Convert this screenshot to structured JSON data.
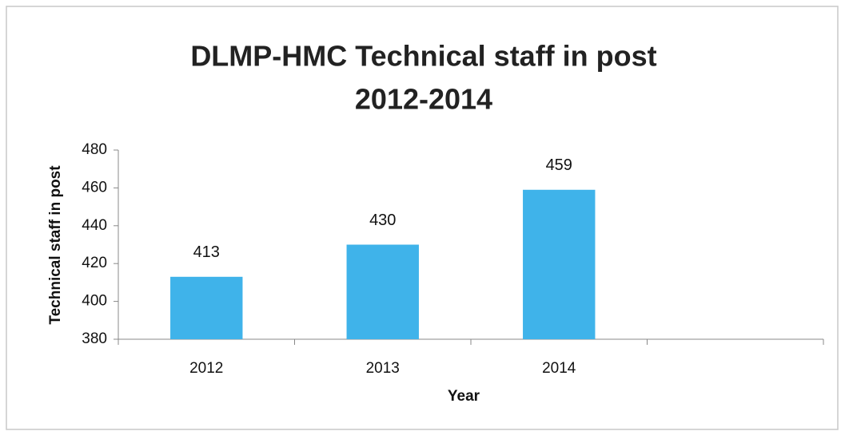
{
  "chart_data": {
    "type": "bar",
    "title": [
      "DLMP-HMC Technical staff in post",
      "2012-2014"
    ],
    "x_label": "Year",
    "y_label": "Technical staff in post",
    "categories": [
      "2012",
      "2013",
      "2014",
      null
    ],
    "values": [
      413,
      430,
      459,
      null
    ],
    "color": "#3fb3ea",
    "ylim": [
      380,
      480
    ],
    "yticks": [
      380,
      400,
      420,
      440,
      460,
      480
    ],
    "grid": false,
    "data_labels": true
  }
}
